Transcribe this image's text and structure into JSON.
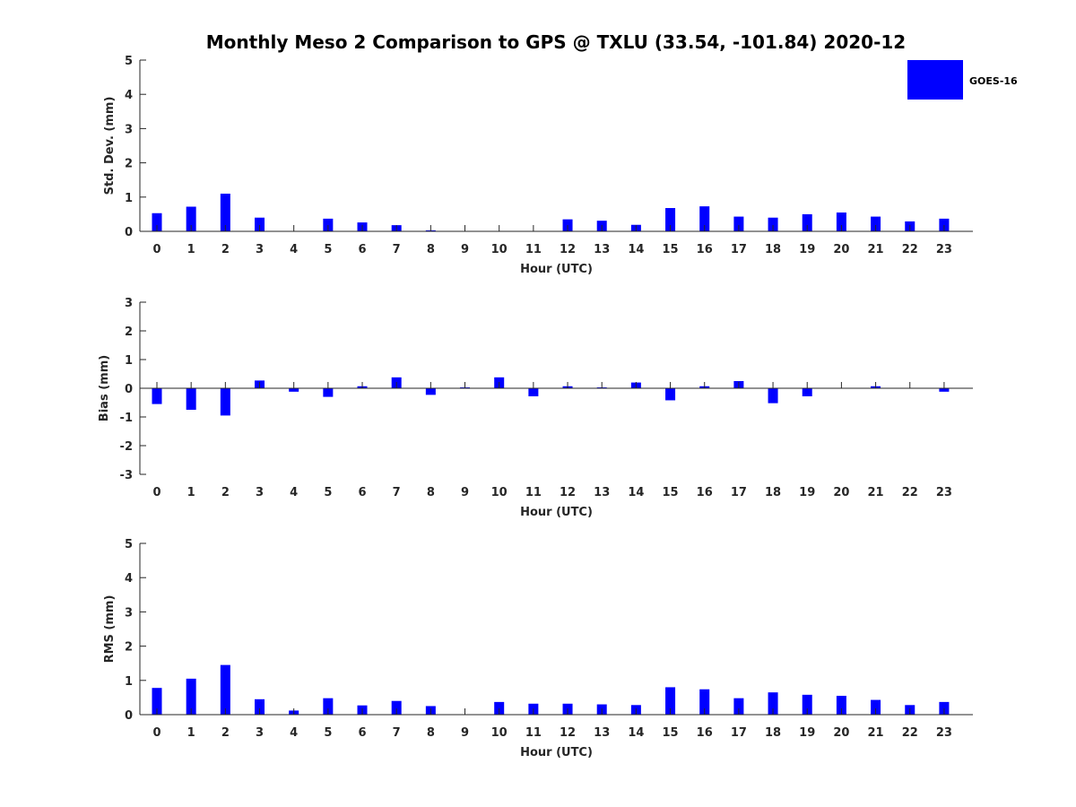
{
  "title": "Monthly Meso 2 Comparison to GPS @ TXLU (33.54, -101.84) 2020-12",
  "legend": {
    "label": "GOES-16",
    "position": "top-right"
  },
  "bar_color": "#0000ff",
  "chart_data": [
    {
      "type": "bar",
      "categories": [
        "0",
        "1",
        "2",
        "3",
        "4",
        "5",
        "6",
        "7",
        "8",
        "9",
        "10",
        "11",
        "12",
        "13",
        "14",
        "15",
        "16",
        "17",
        "18",
        "19",
        "20",
        "21",
        "22",
        "23"
      ],
      "series": [
        {
          "name": "GOES-16",
          "values": [
            0.53,
            0.72,
            1.1,
            0.4,
            0,
            0.37,
            0.26,
            0.18,
            0.03,
            0,
            0,
            0,
            0.35,
            0.31,
            0.19,
            0.68,
            0.73,
            0.43,
            0.4,
            0.5,
            0.55,
            0.43,
            0.29,
            0.37
          ]
        }
      ],
      "xlabel": "Hour (UTC)",
      "ylabel": "Std. Dev. (mm)",
      "ylim": [
        0,
        5
      ],
      "yticks": [
        "0",
        "1",
        "2",
        "3",
        "4",
        "5"
      ],
      "grid": false
    },
    {
      "type": "bar",
      "categories": [
        "0",
        "1",
        "2",
        "3",
        "4",
        "5",
        "6",
        "7",
        "8",
        "9",
        "10",
        "11",
        "12",
        "13",
        "14",
        "15",
        "16",
        "17",
        "18",
        "19",
        "20",
        "21",
        "22",
        "23"
      ],
      "series": [
        {
          "name": "GOES-16",
          "values": [
            -0.55,
            -0.75,
            -0.95,
            0.27,
            -0.12,
            -0.3,
            0.07,
            0.38,
            -0.23,
            0.03,
            0.38,
            -0.28,
            0.07,
            0.03,
            0.2,
            -0.42,
            0.07,
            0.25,
            -0.52,
            -0.28,
            0,
            0.07,
            0,
            -0.12
          ]
        }
      ],
      "xlabel": "Hour (UTC)",
      "ylabel": "Bias (mm)",
      "ylim": [
        -3,
        3
      ],
      "yticks": [
        "-3",
        "-2",
        "-1",
        "0",
        "1",
        "2",
        "3"
      ],
      "grid": false
    },
    {
      "type": "bar",
      "categories": [
        "0",
        "1",
        "2",
        "3",
        "4",
        "5",
        "6",
        "7",
        "8",
        "9",
        "10",
        "11",
        "12",
        "13",
        "14",
        "15",
        "16",
        "17",
        "18",
        "19",
        "20",
        "21",
        "22",
        "23"
      ],
      "series": [
        {
          "name": "GOES-16",
          "values": [
            0.78,
            1.05,
            1.45,
            0.45,
            0.12,
            0.48,
            0.27,
            0.4,
            0.25,
            0,
            0.37,
            0.32,
            0.32,
            0.3,
            0.28,
            0.8,
            0.74,
            0.48,
            0.65,
            0.58,
            0.55,
            0.43,
            0.28,
            0.37
          ]
        }
      ],
      "xlabel": "Hour (UTC)",
      "ylabel": "RMS (mm)",
      "ylim": [
        0,
        5
      ],
      "yticks": [
        "0",
        "1",
        "2",
        "3",
        "4",
        "5"
      ],
      "grid": false
    }
  ]
}
